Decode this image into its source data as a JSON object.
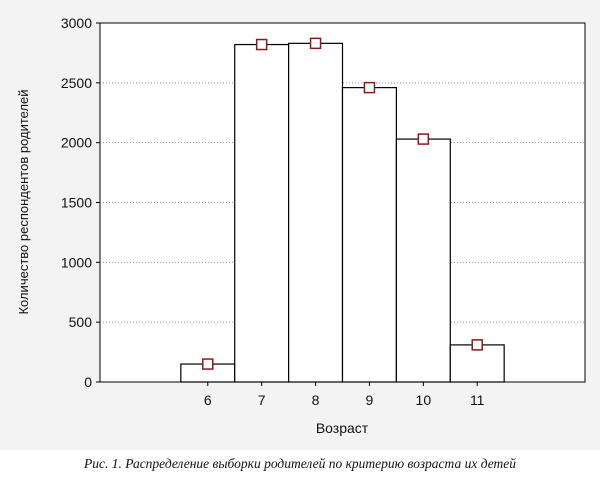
{
  "chart_data": {
    "type": "bar",
    "title": "Рис. 1. Распределение выборки родителей по критерию возраста их детей",
    "x_label": "Возраст",
    "y_label": "Количество респондентов родителей",
    "x": [
      6,
      7,
      8,
      9,
      10,
      11
    ],
    "values": [
      150,
      2820,
      2830,
      2460,
      2030,
      310
    ],
    "color": "#ffffff",
    "marker_color": "#8b1a1a",
    "xlim": [
      4,
      13
    ],
    "xticks": [
      6,
      7,
      8,
      9,
      10,
      11
    ],
    "ylim": [
      0,
      3000
    ],
    "yticks": [
      0,
      500,
      1000,
      1500,
      2000,
      2500,
      3000
    ],
    "grid": true
  }
}
